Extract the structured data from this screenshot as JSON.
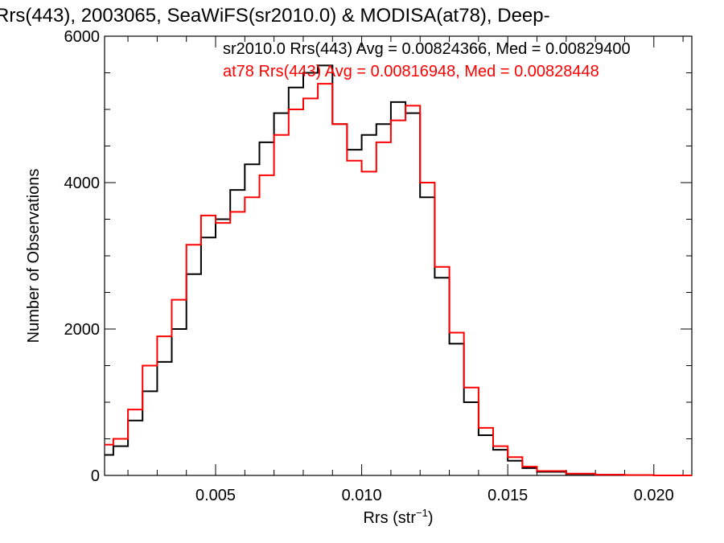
{
  "chart_data": {
    "type": "line",
    "title": "Rrs(443), 2003065, SeaWiFS(sr2010.0) & MODISA(at78), Deep-",
    "xlabel_main": "Rrs (str",
    "xlabel_sup": "−1",
    "xlabel_close": ")",
    "ylabel": "Number of Observations",
    "xlim": [
      0.0012,
      0.0213
    ],
    "ylim": [
      0,
      6000
    ],
    "x_ticks": [
      0.005,
      0.01,
      0.015,
      0.02
    ],
    "x_tick_labels": [
      "0.005",
      "0.010",
      "0.015",
      "0.020"
    ],
    "y_ticks": [
      0,
      2000,
      4000,
      6000
    ],
    "y_tick_labels": [
      "0",
      "2000",
      "4000",
      "6000"
    ],
    "grid": false,
    "legend_position": "top-right",
    "series": [
      {
        "name": "sr2010.0",
        "legend_text": "sr2010.0 Rrs(443) Avg = 0.00824366, Med = 0.00829400",
        "color": "#000000",
        "x": [
          0.0012,
          0.0015,
          0.002,
          0.0025,
          0.003,
          0.0035,
          0.004,
          0.0045,
          0.005,
          0.0055,
          0.006,
          0.0065,
          0.007,
          0.0075,
          0.008,
          0.0085,
          0.009,
          0.0095,
          0.01,
          0.0105,
          0.011,
          0.0115,
          0.012,
          0.0125,
          0.013,
          0.0135,
          0.014,
          0.0145,
          0.015,
          0.0155,
          0.016,
          0.017,
          0.018,
          0.019,
          0.02,
          0.0213
        ],
        "y": [
          280,
          400,
          750,
          1150,
          1550,
          2000,
          2750,
          3250,
          3500,
          3900,
          4250,
          4550,
          4950,
          5300,
          5500,
          5600,
          4800,
          4450,
          4650,
          4800,
          5100,
          4950,
          3800,
          2700,
          1800,
          1000,
          550,
          350,
          200,
          100,
          50,
          20,
          10,
          5,
          0,
          0
        ]
      },
      {
        "name": "at78",
        "legend_text": "at78 Rrs(443) Avg = 0.00816948, Med = 0.00828448",
        "color": "#ff0000",
        "x": [
          0.0012,
          0.0015,
          0.002,
          0.0025,
          0.003,
          0.0035,
          0.004,
          0.0045,
          0.005,
          0.0055,
          0.006,
          0.0065,
          0.007,
          0.0075,
          0.008,
          0.0085,
          0.009,
          0.0095,
          0.01,
          0.0105,
          0.011,
          0.0115,
          0.012,
          0.0125,
          0.013,
          0.0135,
          0.014,
          0.0145,
          0.015,
          0.0155,
          0.016,
          0.017,
          0.018,
          0.019,
          0.02,
          0.0213
        ],
        "y": [
          420,
          500,
          900,
          1500,
          1900,
          2400,
          3150,
          3550,
          3450,
          3600,
          3800,
          4100,
          4650,
          5000,
          5150,
          5350,
          4800,
          4300,
          4150,
          4550,
          4850,
          5050,
          4000,
          2850,
          1950,
          1200,
          650,
          400,
          250,
          120,
          60,
          25,
          10,
          5,
          0,
          0
        ]
      }
    ]
  }
}
